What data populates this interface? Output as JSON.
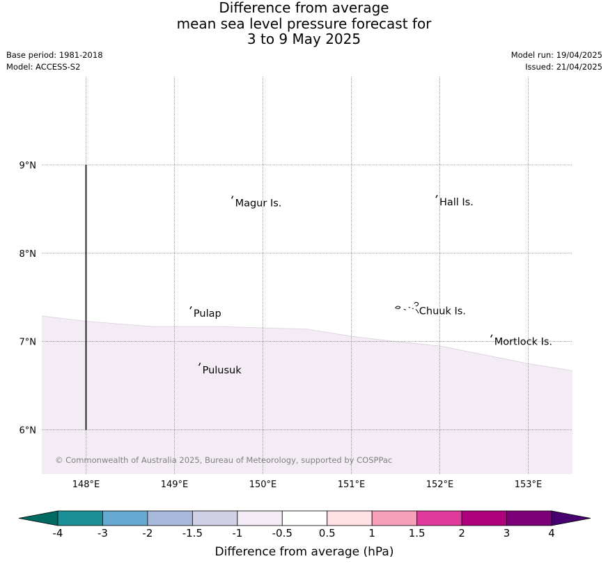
{
  "title": {
    "line1": "Difference from average",
    "line2": "mean sea level pressure forecast for",
    "line3": "3 to 9 May 2025"
  },
  "meta_left": {
    "base_period": "Base period: 1981-2018",
    "model": "Model: ACCESS-S2"
  },
  "meta_right": {
    "model_run": "Model run: 19/04/2025",
    "issued": "Issued: 21/04/2025"
  },
  "map": {
    "extent": {
      "lon_min": 147.5,
      "lon_max": 153.5,
      "lat_min": 5.5,
      "lat_max": 10.0
    },
    "lat_labels": [
      "9°N",
      "8°N",
      "7°N",
      "6°N"
    ],
    "lon_labels": [
      "148°E",
      "149°E",
      "150°E",
      "151°E",
      "152°E",
      "153°E"
    ],
    "places": [
      {
        "name": "Magur Is.",
        "lon": 149.67,
        "lat": 8.57
      },
      {
        "name": "Hall Is.",
        "lon": 151.98,
        "lat": 8.58
      },
      {
        "name": "Pulap",
        "lon": 149.2,
        "lat": 7.32
      },
      {
        "name": "Chuuk Is.",
        "lon": 151.75,
        "lat": 7.35
      },
      {
        "name": "Mortlock Is.",
        "lon": 152.6,
        "lat": 7.0
      },
      {
        "name": "Pulusuk",
        "lon": 149.3,
        "lat": 6.68
      }
    ],
    "shaded_region": {
      "band": "-1 to -0.5",
      "color": "#f3ecf4",
      "boundary": [
        [
          147.5,
          7.29
        ],
        [
          148.0,
          7.23
        ],
        [
          148.75,
          7.17
        ],
        [
          149.5,
          7.17
        ],
        [
          150.5,
          7.14
        ],
        [
          151.0,
          7.06
        ],
        [
          151.5,
          7.0
        ],
        [
          152.0,
          6.95
        ],
        [
          152.5,
          6.85
        ],
        [
          153.0,
          6.75
        ],
        [
          153.5,
          6.67
        ]
      ]
    },
    "meridian_line": {
      "lon": 148.0,
      "lat_from": 9.0,
      "lat_to": 6.0
    },
    "copyright": "© Commonwealth of Australia 2025, Bureau of Meteorology, supported by COSPPac"
  },
  "colorbar": {
    "label": "Difference from average (hPa)",
    "ticks": [
      "-4",
      "-3",
      "-2",
      "-1.5",
      "-1",
      "-0.5",
      "0.5",
      "1",
      "1.5",
      "2",
      "3",
      "4"
    ],
    "colors": [
      "#1a8f96",
      "#66aad2",
      "#a8badb",
      "#d0d0e6",
      "#f3ecf4",
      "#ffffff",
      "#ffe0e3",
      "#f9a0bb",
      "#e03a9c",
      "#b0017c",
      "#7c0078"
    ],
    "under_color": "#006a62",
    "over_color": "#480070"
  }
}
